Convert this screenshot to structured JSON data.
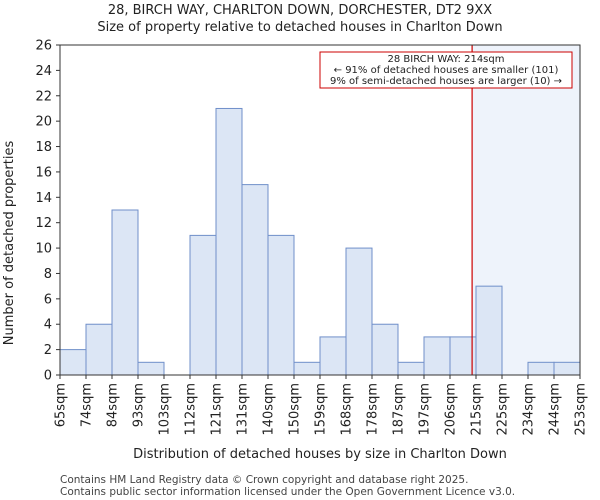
{
  "chart_data": {
    "type": "bar",
    "title_lines": [
      "28, BIRCH WAY, CHARLTON DOWN, DORCHESTER, DT2 9XX",
      "Size of property relative to detached houses in Charlton Down"
    ],
    "xlabel": "Distribution of detached houses by size in Charlton Down",
    "ylabel": "Number of detached properties",
    "bin_edges": [
      "65sqm",
      "74sqm",
      "84sqm",
      "93sqm",
      "103sqm",
      "112sqm",
      "121sqm",
      "131sqm",
      "140sqm",
      "150sqm",
      "159sqm",
      "168sqm",
      "178sqm",
      "187sqm",
      "197sqm",
      "206sqm",
      "215sqm",
      "225sqm",
      "234sqm",
      "244sqm",
      "253sqm"
    ],
    "values": [
      2,
      4,
      13,
      1,
      0,
      11,
      21,
      15,
      11,
      1,
      3,
      10,
      4,
      1,
      3,
      3,
      7,
      0,
      1,
      1
    ],
    "ylim": [
      0,
      26
    ],
    "yticks": [
      0,
      2,
      4,
      6,
      8,
      10,
      12,
      14,
      16,
      18,
      20,
      22,
      24,
      26
    ],
    "grid": false,
    "marker_position_bins": 15.85,
    "annotation_lines": [
      "28 BIRCH WAY: 214sqm",
      "← 91% of detached houses are smaller (101)",
      "9% of semi-detached houses are larger (10) →"
    ],
    "colors": {
      "bar_fill": "#dce6f5",
      "bar_edge": "#6f8fc9",
      "marker": "#cc0000",
      "highlight": "#eef3fb"
    }
  },
  "footer_lines": [
    "Contains HM Land Registry data © Crown copyright and database right 2025.",
    "Contains public sector information licensed under the Open Government Licence v3.0."
  ]
}
